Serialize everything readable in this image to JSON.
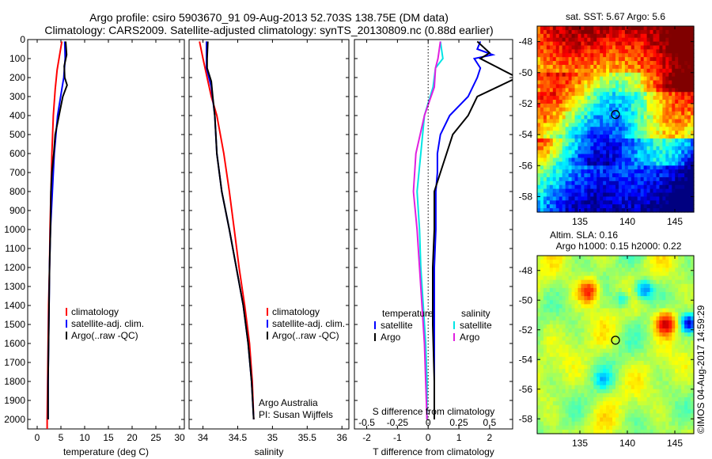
{
  "title_line1": "Argo profile: csiro 5903670_91 09-Aug-2013 52.703S 138.75E (DM data)",
  "title_line2": "Climatology: CARS2009. Satellite-adjusted climatology: synTS_20130809.nc (0.88d earlier)",
  "colors": {
    "climatology": "#ff0000",
    "satellite": "#0000ff",
    "argo": "#000000",
    "s_satellite": "#00e5e5",
    "s_argo": "#e020e0"
  },
  "chart_data": [
    {
      "type": "line",
      "xlabel": "temperature (deg C)",
      "ylabel": "",
      "xlim": [
        -2,
        31
      ],
      "ylim": [
        0,
        2050
      ],
      "xticks": [
        0,
        5,
        10,
        15,
        20,
        25,
        30
      ],
      "yticks": [
        0,
        100,
        200,
        300,
        400,
        500,
        600,
        700,
        800,
        900,
        1000,
        1100,
        1200,
        1300,
        1400,
        1500,
        1600,
        1700,
        1800,
        1900,
        2000
      ],
      "legend": [
        "climatology",
        "satellite-adj. clim.",
        "Argo(..raw -QC)"
      ],
      "series": [
        {
          "name": "climatology",
          "color": "#ff0000",
          "points": [
            [
              5.2,
              10
            ],
            [
              4.6,
              100
            ],
            [
              4.2,
              160
            ],
            [
              3.8,
              260
            ],
            [
              3.4,
              400
            ],
            [
              3.1,
              600
            ],
            [
              2.9,
              800
            ],
            [
              2.7,
              1000
            ],
            [
              2.6,
              1200
            ],
            [
              2.4,
              1400
            ],
            [
              2.3,
              1600
            ],
            [
              2.2,
              1800
            ],
            [
              2.1,
              2000
            ],
            [
              2.1,
              2050
            ]
          ]
        },
        {
          "name": "satellite-adj. clim.",
          "color": "#0000ff",
          "points": [
            [
              5.8,
              10
            ],
            [
              5.9,
              100
            ],
            [
              5.6,
              200
            ],
            [
              5.2,
              260
            ],
            [
              4.3,
              400
            ],
            [
              3.6,
              600
            ],
            [
              3.2,
              800
            ],
            [
              2.8,
              1000
            ],
            [
              2.6,
              1200
            ],
            [
              2.5,
              1400
            ],
            [
              2.4,
              1600
            ],
            [
              2.3,
              1800
            ],
            [
              2.3,
              2000
            ]
          ]
        },
        {
          "name": "Argo(..raw -QC)",
          "color": "#000000",
          "points": [
            [
              6.0,
              10
            ],
            [
              6.2,
              80
            ],
            [
              5.7,
              140
            ],
            [
              5.8,
              200
            ],
            [
              6.3,
              240
            ],
            [
              5.4,
              300
            ],
            [
              4.6,
              400
            ],
            [
              3.8,
              500
            ],
            [
              3.5,
              600
            ],
            [
              3.1,
              700
            ],
            [
              2.9,
              800
            ],
            [
              2.8,
              1000
            ],
            [
              2.6,
              1200
            ],
            [
              2.5,
              1400
            ],
            [
              2.4,
              1600
            ],
            [
              2.3,
              1800
            ],
            [
              2.3,
              2000
            ]
          ]
        }
      ]
    },
    {
      "type": "line",
      "xlabel": "salinity",
      "ylabel": "",
      "xlim": [
        33.8,
        36.1
      ],
      "ylim": [
        0,
        2050
      ],
      "xticks": [
        34,
        34.5,
        35,
        35.5,
        36
      ],
      "legend": [
        "climatology",
        "satellite-adj. clim.",
        "Argo(..raw -QC)"
      ],
      "annotation": [
        "Argo Australia",
        "PI: Susan Wijffels"
      ],
      "series": [
        {
          "name": "climatology",
          "color": "#ff0000",
          "points": [
            [
              33.95,
              10
            ],
            [
              34.0,
              100
            ],
            [
              34.06,
              200
            ],
            [
              34.12,
              300
            ],
            [
              34.2,
              400
            ],
            [
              34.3,
              600
            ],
            [
              34.38,
              800
            ],
            [
              34.45,
              1000
            ],
            [
              34.52,
              1200
            ],
            [
              34.6,
              1400
            ],
            [
              34.67,
              1600
            ],
            [
              34.71,
              1800
            ],
            [
              34.73,
              2000
            ]
          ]
        },
        {
          "name": "satellite-adj. clim.",
          "color": "#0000ff",
          "points": [
            [
              34.05,
              10
            ],
            [
              34.05,
              100
            ],
            [
              34.05,
              150
            ],
            [
              34.12,
              250
            ],
            [
              34.17,
              400
            ],
            [
              34.2,
              600
            ],
            [
              34.27,
              800
            ],
            [
              34.38,
              1000
            ],
            [
              34.48,
              1200
            ],
            [
              34.58,
              1400
            ],
            [
              34.65,
              1600
            ],
            [
              34.7,
              1800
            ],
            [
              34.73,
              2000
            ]
          ]
        },
        {
          "name": "Argo(..raw -QC)",
          "color": "#000000",
          "points": [
            [
              34.07,
              10
            ],
            [
              34.06,
              100
            ],
            [
              34.06,
              150
            ],
            [
              34.12,
              220
            ],
            [
              34.14,
              300
            ],
            [
              34.17,
              400
            ],
            [
              34.2,
              600
            ],
            [
              34.27,
              800
            ],
            [
              34.38,
              1000
            ],
            [
              34.48,
              1200
            ],
            [
              34.58,
              1400
            ],
            [
              34.65,
              1600
            ],
            [
              34.7,
              1800
            ],
            [
              34.73,
              2000
            ]
          ]
        }
      ]
    },
    {
      "type": "line",
      "xlabel": "T difference from climatology",
      "x2label": "S difference from climatology",
      "ylabel": "",
      "xlim": [
        -2.4,
        2.75
      ],
      "ylim": [
        0,
        2050
      ],
      "xticks": [
        -2,
        -1,
        0,
        1,
        2
      ],
      "x2lim": [
        -0.6,
        0.6875
      ],
      "x2ticks": [
        -0.5,
        -0.25,
        0,
        0.25,
        0.5
      ],
      "legend_left": {
        "title": "temperature",
        "items": [
          "satellite",
          "Argo"
        ]
      },
      "legend_right": {
        "title": "salinity",
        "items": [
          "satellite",
          "Argo"
        ]
      },
      "series": [
        {
          "name": "T satellite",
          "color": "#0000ff",
          "axis": "T",
          "points": [
            [
              1.7,
              10
            ],
            [
              1.6,
              50
            ],
            [
              2.1,
              80
            ],
            [
              1.5,
              100
            ],
            [
              1.7,
              150
            ],
            [
              1.6,
              200
            ],
            [
              1.3,
              300
            ],
            [
              0.7,
              400
            ],
            [
              0.4,
              500
            ],
            [
              0.3,
              600
            ],
            [
              0.3,
              700
            ],
            [
              0.25,
              800
            ],
            [
              0.25,
              1000
            ],
            [
              0.2,
              1200
            ],
            [
              0.2,
              1500
            ],
            [
              0.2,
              1800
            ],
            [
              0.2,
              2000
            ]
          ]
        },
        {
          "name": "T Argo",
          "color": "#000000",
          "axis": "T",
          "points": [
            [
              1.6,
              10
            ],
            [
              2.0,
              70
            ],
            [
              1.7,
              100
            ],
            [
              2.3,
              150
            ],
            [
              2.9,
              200
            ],
            [
              1.6,
              300
            ],
            [
              1.3,
              400
            ],
            [
              0.8,
              500
            ],
            [
              0.6,
              600
            ],
            [
              0.4,
              700
            ],
            [
              0.2,
              800
            ],
            [
              0.2,
              1000
            ],
            [
              0.15,
              1200
            ],
            [
              0.15,
              1500
            ],
            [
              0.2,
              1800
            ],
            [
              0.2,
              2000
            ]
          ]
        },
        {
          "name": "S satellite",
          "color": "#00e5e5",
          "axis": "S",
          "points": [
            [
              0.1,
              10
            ],
            [
              0.12,
              100
            ],
            [
              0.06,
              150
            ],
            [
              0.04,
              250
            ],
            [
              -0.03,
              400
            ],
            [
              -0.06,
              600
            ],
            [
              -0.09,
              800
            ],
            [
              -0.07,
              1000
            ],
            [
              -0.06,
              1200
            ],
            [
              -0.04,
              1400
            ],
            [
              -0.02,
              1600
            ],
            [
              -0.01,
              1800
            ],
            [
              -0.01,
              2000
            ]
          ]
        },
        {
          "name": "S Argo",
          "color": "#e020e0",
          "axis": "S",
          "points": [
            [
              0.1,
              10
            ],
            [
              0.08,
              100
            ],
            [
              0.06,
              150
            ],
            [
              0.05,
              250
            ],
            [
              -0.03,
              400
            ],
            [
              -0.1,
              600
            ],
            [
              -0.12,
              800
            ],
            [
              -0.09,
              1000
            ],
            [
              -0.07,
              1200
            ],
            [
              -0.05,
              1400
            ],
            [
              -0.03,
              1600
            ],
            [
              -0.02,
              1800
            ],
            [
              -0.01,
              2000
            ]
          ]
        }
      ]
    },
    {
      "type": "heatmap",
      "title": "sat. SST: 5.67 Argo: 5.6",
      "xlim": [
        130.5,
        147
      ],
      "ylim": [
        -59,
        -47
      ],
      "xticks": [
        135,
        140,
        145
      ],
      "yticks": [
        -48,
        -50,
        -52,
        -54,
        -56,
        -58
      ],
      "marker": [
        138.75,
        -52.703
      ]
    },
    {
      "type": "heatmap",
      "title_line1": "Altim. SLA: 0.16",
      "title_line2": "Argo h1000: 0.15 h2000: 0.22",
      "xlim": [
        130.5,
        147
      ],
      "ylim": [
        -59,
        -47
      ],
      "xticks": [
        135,
        140,
        145
      ],
      "yticks": [
        -48,
        -50,
        -52,
        -54,
        -56,
        -58
      ],
      "marker": [
        138.75,
        -52.703
      ]
    }
  ],
  "side_stamp": "©IMOS 04-Aug-2017 14:59:29"
}
